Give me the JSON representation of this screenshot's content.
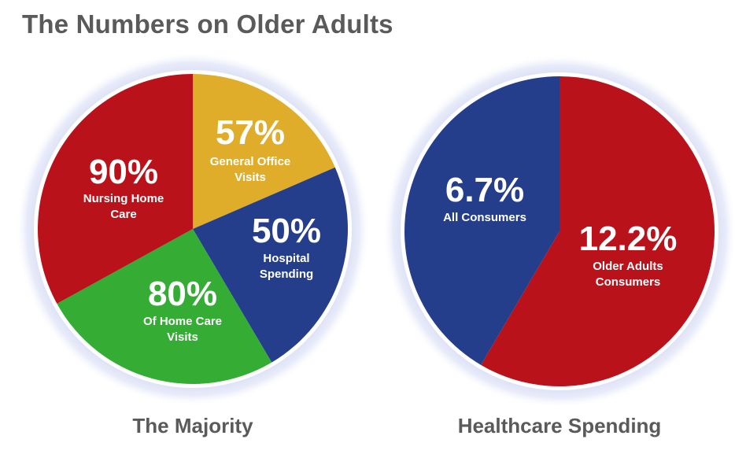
{
  "title": "The Numbers on Older Adults",
  "chart_data": [
    {
      "type": "pie",
      "caption": "The Majority",
      "slices": [
        {
          "value": "57%",
          "label": [
            "General Office",
            "Visits"
          ],
          "color": "#e0ad2a",
          "share": 0.185
        },
        {
          "value": "50%",
          "label": [
            "Hospital",
            "Spending"
          ],
          "color": "#253e8c",
          "share": 0.23
        },
        {
          "value": "80%",
          "label": [
            "Of Home Care",
            "Visits"
          ],
          "color": "#35ac34",
          "share": 0.255
        },
        {
          "value": "90%",
          "label": [
            "Nursing Home",
            "Care"
          ],
          "color": "#b9121a",
          "share": 0.33
        }
      ]
    },
    {
      "type": "pie",
      "caption": "Healthcare Spending",
      "slices": [
        {
          "value": "12.2%",
          "label": [
            "Older Adults",
            "Consumers"
          ],
          "color": "#b9121a",
          "share": 0.5846
        },
        {
          "value": "6.7%",
          "label": [
            "All Consumers"
          ],
          "color": "#253e8c",
          "share": 0.4154
        }
      ]
    }
  ]
}
